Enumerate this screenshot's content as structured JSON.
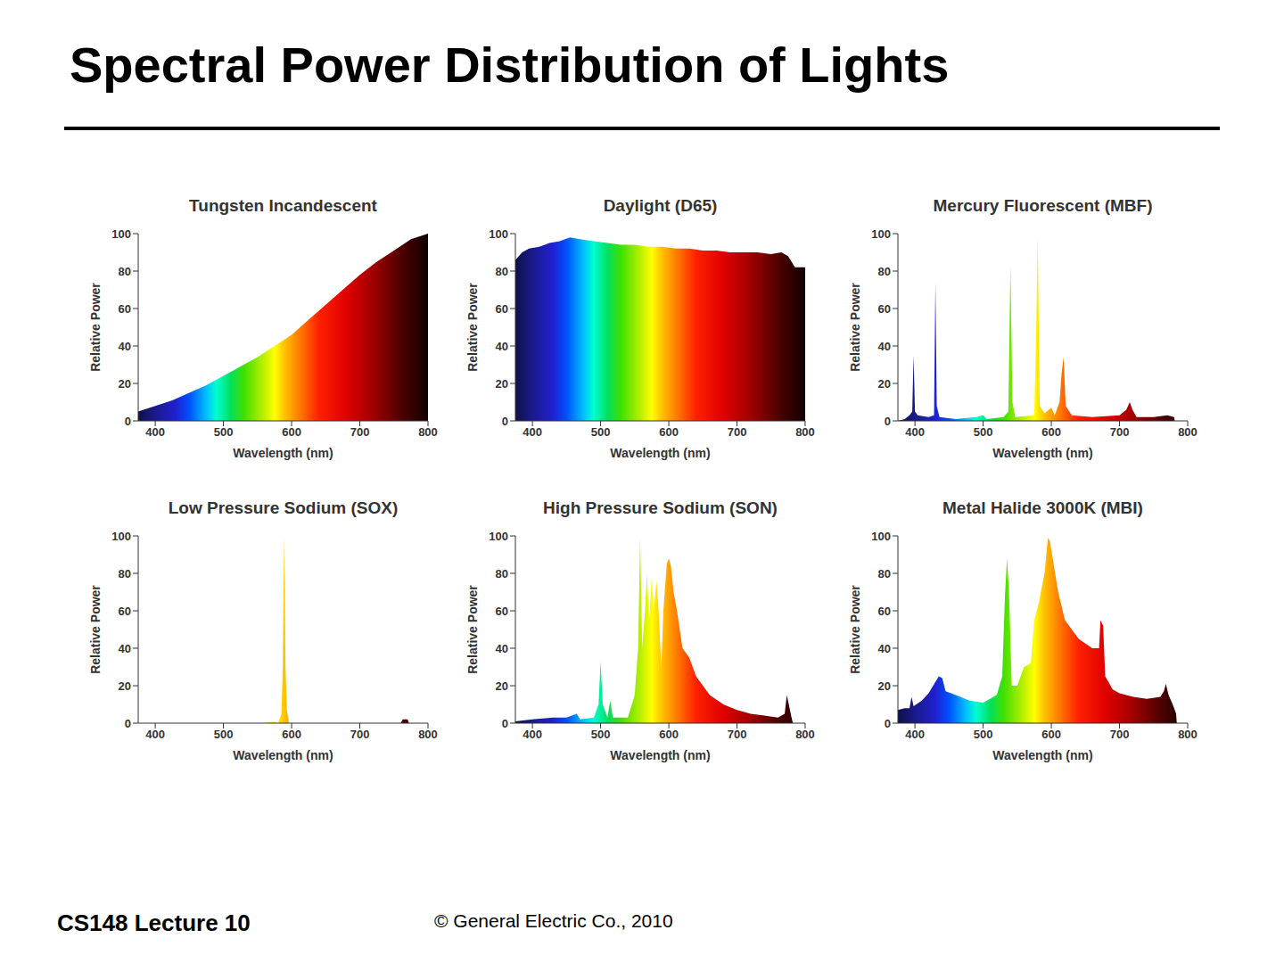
{
  "title": "Spectral Power Distribution of Lights",
  "footer": {
    "left": "CS148 Lecture 10",
    "credit": "© General Electric Co., 2010"
  },
  "chart_data": [
    {
      "type": "area",
      "title": "Tungsten Incandescent",
      "xlabel": "Wavelength (nm)",
      "ylabel": "Relative Power",
      "xlim": [
        375,
        800
      ],
      "xticks": [
        400,
        500,
        600,
        700,
        800
      ],
      "ylim": [
        0,
        100
      ],
      "yticks": [
        0,
        20,
        40,
        60,
        80,
        100
      ],
      "x": [
        375,
        400,
        425,
        450,
        475,
        500,
        525,
        550,
        575,
        600,
        625,
        650,
        675,
        700,
        725,
        750,
        775,
        800
      ],
      "values": [
        5,
        8,
        11,
        15,
        19,
        24,
        29,
        34,
        40,
        46,
        54,
        62,
        70,
        78,
        85,
        91,
        97,
        100
      ]
    },
    {
      "type": "area",
      "title": "Daylight (D65)",
      "xlabel": "Wavelength (nm)",
      "ylabel": "Relative Power",
      "xlim": [
        375,
        800
      ],
      "xticks": [
        400,
        500,
        600,
        700,
        800
      ],
      "ylim": [
        0,
        100
      ],
      "yticks": [
        0,
        20,
        40,
        60,
        80,
        100
      ],
      "x": [
        375,
        385,
        395,
        410,
        425,
        440,
        455,
        470,
        490,
        510,
        530,
        550,
        570,
        590,
        610,
        630,
        650,
        670,
        690,
        710,
        730,
        750,
        765,
        775,
        785,
        800
      ],
      "values": [
        86,
        90,
        92,
        93,
        95,
        96,
        98,
        97,
        96,
        95,
        94,
        94,
        93,
        93,
        92,
        92,
        91,
        91,
        90,
        90,
        90,
        89,
        90,
        88,
        82,
        82
      ]
    },
    {
      "type": "area",
      "title": "Mercury Fluorescent (MBF)",
      "xlabel": "Wavelength (nm)",
      "ylabel": "Relative Power",
      "xlim": [
        375,
        800
      ],
      "xticks": [
        400,
        500,
        600,
        700,
        800
      ],
      "ylim": [
        0,
        100
      ],
      "yticks": [
        0,
        20,
        40,
        60,
        80,
        100
      ],
      "x": [
        375,
        385,
        392,
        396,
        398,
        400,
        404,
        420,
        428,
        430,
        432,
        436,
        460,
        490,
        500,
        505,
        530,
        537,
        540,
        543,
        547,
        575,
        578,
        580,
        583,
        590,
        600,
        605,
        612,
        615,
        618,
        621,
        630,
        660,
        700,
        710,
        715,
        719,
        725,
        750,
        770,
        780,
        781,
        800
      ],
      "values": [
        0,
        1,
        3,
        5,
        35,
        5,
        3,
        2,
        3,
        74,
        8,
        2,
        1,
        2,
        3,
        1,
        2,
        5,
        83,
        10,
        2,
        3,
        52,
        99,
        8,
        4,
        7,
        3,
        10,
        25,
        34,
        8,
        3,
        2,
        3,
        6,
        10,
        6,
        2,
        2,
        3,
        2,
        0,
        0
      ]
    },
    {
      "type": "area",
      "title": "Low Pressure Sodium (SOX)",
      "xlabel": "Wavelength (nm)",
      "ylabel": "Relative Power",
      "xlim": [
        375,
        800
      ],
      "xticks": [
        400,
        500,
        600,
        700,
        800
      ],
      "ylim": [
        0,
        100
      ],
      "yticks": [
        0,
        20,
        40,
        60,
        80,
        100
      ],
      "x": [
        375,
        560,
        575,
        580,
        585,
        587,
        589,
        591,
        593,
        596,
        760,
        763,
        770,
        772,
        800
      ],
      "values": [
        0,
        0,
        1,
        0,
        5,
        30,
        100,
        30,
        7,
        0,
        0,
        2,
        2,
        0,
        0
      ]
    },
    {
      "type": "area",
      "title": "High Pressure Sodium (SON)",
      "xlabel": "Wavelength (nm)",
      "ylabel": "Relative Power",
      "xlim": [
        375,
        800
      ],
      "xticks": [
        400,
        500,
        600,
        700,
        800
      ],
      "ylim": [
        0,
        100
      ],
      "yticks": [
        0,
        20,
        40,
        60,
        80,
        100
      ],
      "x": [
        375,
        400,
        430,
        450,
        465,
        470,
        490,
        497,
        500,
        503,
        510,
        514,
        518,
        530,
        540,
        550,
        555,
        558,
        561,
        565,
        568,
        571,
        575,
        578,
        582,
        585,
        589,
        592,
        597,
        600,
        603,
        607,
        612,
        620,
        630,
        640,
        660,
        680,
        700,
        720,
        740,
        760,
        770,
        773,
        776,
        780,
        782,
        800
      ],
      "values": [
        1,
        2,
        3,
        3,
        5,
        2,
        3,
        10,
        33,
        10,
        3,
        12,
        3,
        3,
        3,
        15,
        40,
        99,
        40,
        60,
        80,
        55,
        78,
        60,
        76,
        60,
        30,
        60,
        85,
        88,
        84,
        70,
        60,
        40,
        35,
        25,
        15,
        10,
        7,
        5,
        4,
        3,
        5,
        15,
        10,
        3,
        0,
        0
      ]
    },
    {
      "type": "area",
      "title": "Metal Halide 3000K (MBI)",
      "xlabel": "Wavelength (nm)",
      "ylabel": "Relative Power",
      "xlim": [
        375,
        800
      ],
      "xticks": [
        400,
        500,
        600,
        700,
        800
      ],
      "ylim": [
        0,
        100
      ],
      "yticks": [
        0,
        20,
        40,
        60,
        80,
        100
      ],
      "x": [
        375,
        385,
        392,
        395,
        398,
        410,
        420,
        430,
        435,
        440,
        445,
        460,
        480,
        500,
        520,
        528,
        532,
        535,
        538,
        542,
        550,
        560,
        570,
        575,
        582,
        590,
        595,
        598,
        602,
        610,
        620,
        630,
        640,
        660,
        670,
        672,
        676,
        679,
        690,
        700,
        720,
        740,
        760,
        765,
        768,
        772,
        778,
        783,
        784,
        800
      ],
      "values": [
        7,
        8,
        8,
        14,
        9,
        12,
        16,
        22,
        25,
        24,
        17,
        15,
        12,
        11,
        15,
        25,
        68,
        88,
        70,
        20,
        20,
        30,
        32,
        55,
        65,
        80,
        99,
        97,
        88,
        70,
        55,
        50,
        45,
        40,
        40,
        55,
        52,
        25,
        18,
        16,
        14,
        13,
        14,
        17,
        21,
        15,
        10,
        5,
        0,
        0
      ]
    }
  ]
}
